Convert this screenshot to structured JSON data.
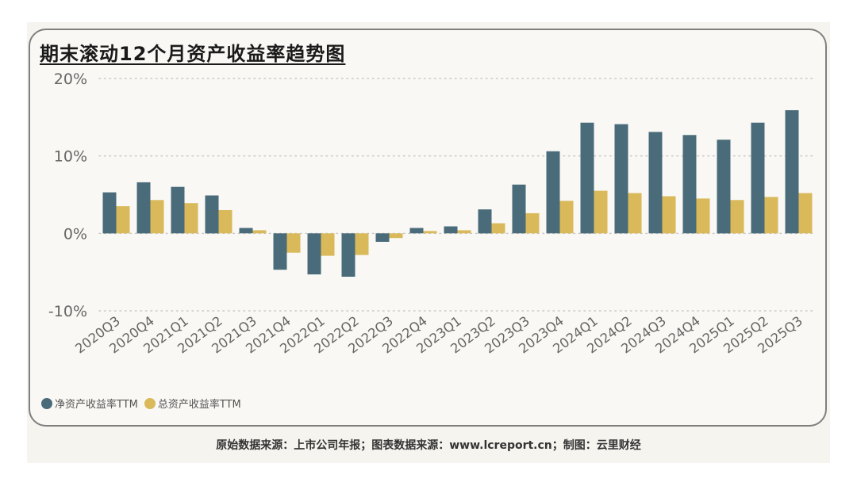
{
  "title": "期末滚动12个月资产收益率趋势图",
  "footer": "原始数据来源：上市公司年报；图表数据来源：www.lcreport.cn；制图：云里财经",
  "colors": {
    "series1": "#4a6b7a",
    "series2": "#d9b95a",
    "grid": "#c8c8c8",
    "axis_text": "#666666"
  },
  "chart_data": {
    "type": "bar",
    "title": "期末滚动12个月资产收益率趋势图",
    "categories": [
      "2020Q3",
      "2020Q4",
      "2021Q1",
      "2021Q2",
      "2021Q3",
      "2021Q4",
      "2022Q1",
      "2022Q2",
      "2022Q3",
      "2022Q4",
      "2023Q1",
      "2023Q2",
      "2023Q3",
      "2023Q4",
      "2024Q1",
      "2024Q2",
      "2024Q3",
      "2024Q4",
      "2025Q1",
      "2025Q2",
      "2025Q3"
    ],
    "series": [
      {
        "name": "净资产收益率TTM",
        "values": [
          5.3,
          6.6,
          6.0,
          4.9,
          0.7,
          -4.7,
          -5.3,
          -5.6,
          -1.1,
          0.7,
          0.9,
          3.1,
          6.3,
          10.6,
          14.3,
          14.1,
          13.1,
          12.7,
          12.1,
          14.3,
          15.9
        ]
      },
      {
        "name": "总资产收益率TTM",
        "values": [
          3.5,
          4.3,
          3.9,
          3.0,
          0.4,
          -2.5,
          -2.9,
          -2.8,
          -0.6,
          0.3,
          0.4,
          1.3,
          2.6,
          4.2,
          5.5,
          5.2,
          4.8,
          4.5,
          4.3,
          4.7,
          5.2
        ]
      }
    ],
    "yticks": [
      {
        "value": 20,
        "label": "20%"
      },
      {
        "value": 10,
        "label": "10%"
      },
      {
        "value": 0,
        "label": "0%"
      },
      {
        "value": -10,
        "label": "-10%"
      }
    ],
    "ylim": [
      -10,
      20
    ],
    "grid": true,
    "legend_position": "bottom-left"
  }
}
